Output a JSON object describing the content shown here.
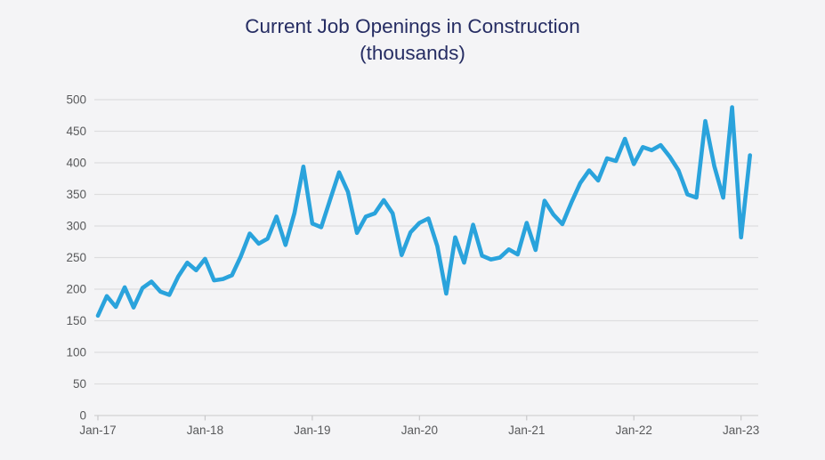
{
  "chart_data": {
    "type": "line",
    "title": "Current Job Openings in Construction",
    "subtitle": "(thousands)",
    "xlabel": "",
    "ylabel": "",
    "ylim": [
      0,
      500
    ],
    "y_tick_step": 50,
    "y_ticks": [
      0,
      50,
      100,
      150,
      200,
      250,
      300,
      350,
      400,
      450,
      500
    ],
    "x_tick_labels": [
      "Jan-17",
      "Jan-18",
      "Jan-19",
      "Jan-20",
      "Jan-21",
      "Jan-22",
      "Jan-23"
    ],
    "grid": "horizontal",
    "legend": "none",
    "frequency": "monthly",
    "series": [
      {
        "name": "construction-job-openings",
        "months": [
          "Jan-17",
          "Feb-17",
          "Mar-17",
          "Apr-17",
          "May-17",
          "Jun-17",
          "Jul-17",
          "Aug-17",
          "Sep-17",
          "Oct-17",
          "Nov-17",
          "Dec-17",
          "Jan-18",
          "Feb-18",
          "Mar-18",
          "Apr-18",
          "May-18",
          "Jun-18",
          "Jul-18",
          "Aug-18",
          "Sep-18",
          "Oct-18",
          "Nov-18",
          "Dec-18",
          "Jan-19",
          "Feb-19",
          "Mar-19",
          "Apr-19",
          "May-19",
          "Jun-19",
          "Jul-19",
          "Aug-19",
          "Sep-19",
          "Oct-19",
          "Nov-19",
          "Dec-19",
          "Jan-20",
          "Feb-20",
          "Mar-20",
          "Apr-20",
          "May-20",
          "Jun-20",
          "Jul-20",
          "Aug-20",
          "Sep-20",
          "Oct-20",
          "Nov-20",
          "Dec-20",
          "Jan-21",
          "Feb-21",
          "Mar-21",
          "Apr-21",
          "May-21",
          "Jun-21",
          "Jul-21",
          "Aug-21",
          "Sep-21",
          "Oct-21",
          "Nov-21",
          "Dec-21",
          "Jan-22",
          "Feb-22",
          "Mar-22",
          "Apr-22",
          "May-22",
          "Jun-22",
          "Jul-22",
          "Aug-22",
          "Sep-22",
          "Oct-22",
          "Nov-22",
          "Dec-22",
          "Jan-23",
          "Feb-23"
        ],
        "values": [
          158,
          189,
          172,
          203,
          171,
          202,
          212,
          196,
          191,
          220,
          242,
          230,
          248,
          214,
          216,
          222,
          252,
          288,
          272,
          280,
          315,
          270,
          320,
          394,
          304,
          298,
          342,
          385,
          354,
          289,
          315,
          320,
          341,
          320,
          254,
          290,
          305,
          312,
          268,
          193,
          282,
          242,
          302,
          253,
          247,
          250,
          263,
          255,
          305,
          262,
          340,
          318,
          303,
          337,
          368,
          388,
          372,
          407,
          403,
          438,
          398,
          425,
          420,
          428,
          410,
          388,
          350,
          345,
          466,
          395,
          345,
          488,
          282,
          412
        ]
      }
    ],
    "colors": {
      "line": "#2aa3dc",
      "title": "#262d63",
      "labels": "#58595b",
      "grid": "#dddddf",
      "axis": "#d2d2d4",
      "tick": "#c8c8ca",
      "background": "#f4f4f6"
    }
  }
}
